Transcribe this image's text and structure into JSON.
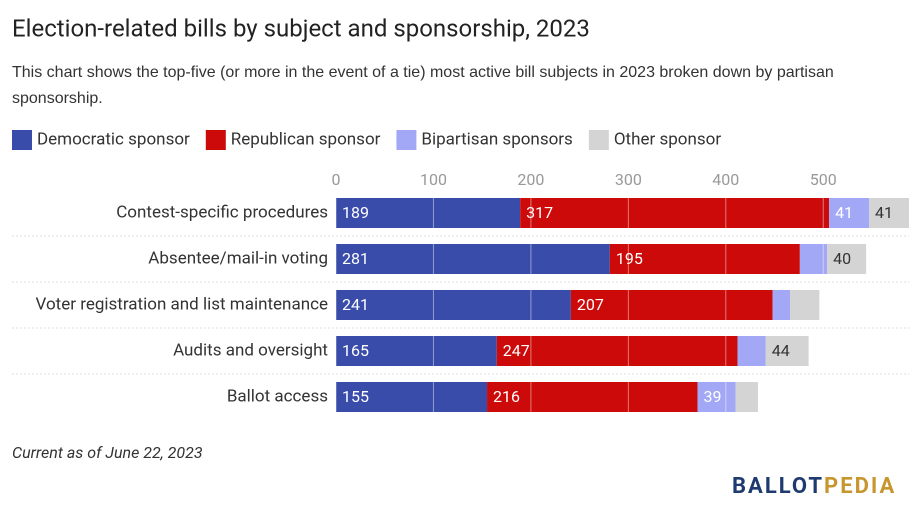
{
  "chart_data": {
    "type": "stacked_barh",
    "title": "Election-related bills by subject and sponsorship, 2023",
    "subtitle": "This chart shows the top-five (or more in the event of a tie) most active bill subjects in 2023 broken down by partisan sponsorship.",
    "categories": [
      "Contest-specific procedures",
      "Absentee/mail-in voting",
      "Voter registration and list maintenance",
      "Audits and oversight",
      "Ballot access"
    ],
    "series": [
      {
        "name": "Democratic sponsor",
        "color": "#3a4caa",
        "values": [
          189,
          281,
          241,
          165,
          155
        ],
        "value_labels": [
          189,
          281,
          241,
          165,
          155
        ]
      },
      {
        "name": "Republican sponsor",
        "color": "#cc0a0a",
        "values": [
          317,
          195,
          207,
          247,
          216
        ],
        "value_labels": [
          317,
          195,
          207,
          247,
          216
        ]
      },
      {
        "name": "Bipartisan sponsors",
        "color": "#a3a8f6",
        "values": [
          41,
          28,
          18,
          29,
          39
        ],
        "value_labels": [
          41,
          null,
          null,
          null,
          39
        ]
      },
      {
        "name": "Other sponsor",
        "color": "#d4d4d4",
        "values": [
          41,
          40,
          30,
          44,
          23
        ],
        "value_labels": [
          41,
          40,
          null,
          44,
          null
        ]
      }
    ],
    "xlim": [
      0,
      588
    ],
    "xticks": [
      0,
      100,
      200,
      300,
      400,
      500
    ],
    "grid": true,
    "note": "Current as of June 22, 2023",
    "logo": [
      "BALLOT",
      "PEDIA"
    ]
  }
}
